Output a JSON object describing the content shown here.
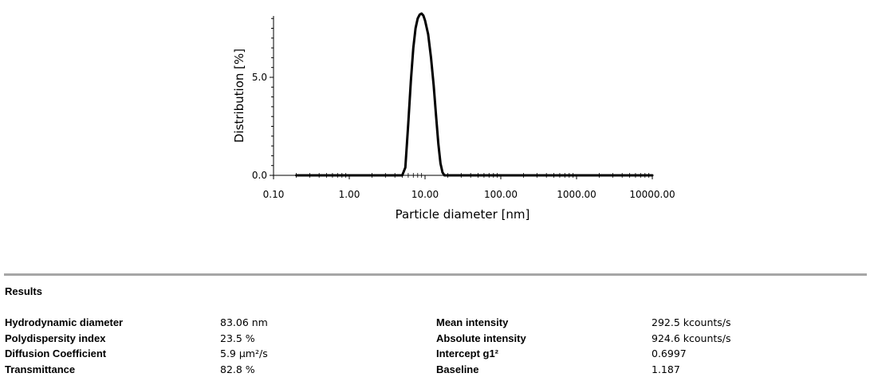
{
  "chart_data": {
    "type": "line",
    "xlabel": "Particle diameter [nm]",
    "ylabel": "Distribution [%]",
    "x_scale": "log",
    "xlim": [
      0.1,
      10000
    ],
    "ylim": [
      0,
      8.5
    ],
    "x_tick_labels": [
      "0.10",
      "1.00",
      "10.00",
      "100.00",
      "1000.00",
      "10000.00"
    ],
    "y_tick_labels": [
      "0.0",
      "5.0"
    ],
    "grid": false,
    "series": [
      {
        "x": [
          0.2,
          1,
          5,
          5.5,
          6,
          6.5,
          7,
          7.5,
          8,
          8.5,
          9,
          9.5,
          10,
          11,
          12,
          13,
          14,
          15,
          16,
          17,
          18,
          20,
          100,
          1000,
          10000
        ],
        "y": [
          0,
          0,
          0,
          0.4,
          2.6,
          4.8,
          6.5,
          7.5,
          8.0,
          8.2,
          8.25,
          8.15,
          7.9,
          7.2,
          6.0,
          4.6,
          3.0,
          1.6,
          0.6,
          0.15,
          0,
          0,
          0,
          0,
          0
        ]
      }
    ]
  },
  "results": {
    "heading": "Results",
    "left": [
      {
        "label": "Hydrodynamic diameter",
        "value": "83.06 nm"
      },
      {
        "label": "Polydispersity index",
        "value": "23.5 %"
      },
      {
        "label": "Diffusion Coefficient",
        "value": "5.9 µm²/s"
      },
      {
        "label": "Transmittance",
        "value": "82.8 %"
      }
    ],
    "right": [
      {
        "label": "Mean intensity",
        "value": "292.5 kcounts/s"
      },
      {
        "label": "Absolute intensity",
        "value": "924.6 kcounts/s"
      },
      {
        "label": "Intercept g1²",
        "value": "0.6997"
      },
      {
        "label": "Baseline",
        "value": "1.187"
      }
    ]
  }
}
